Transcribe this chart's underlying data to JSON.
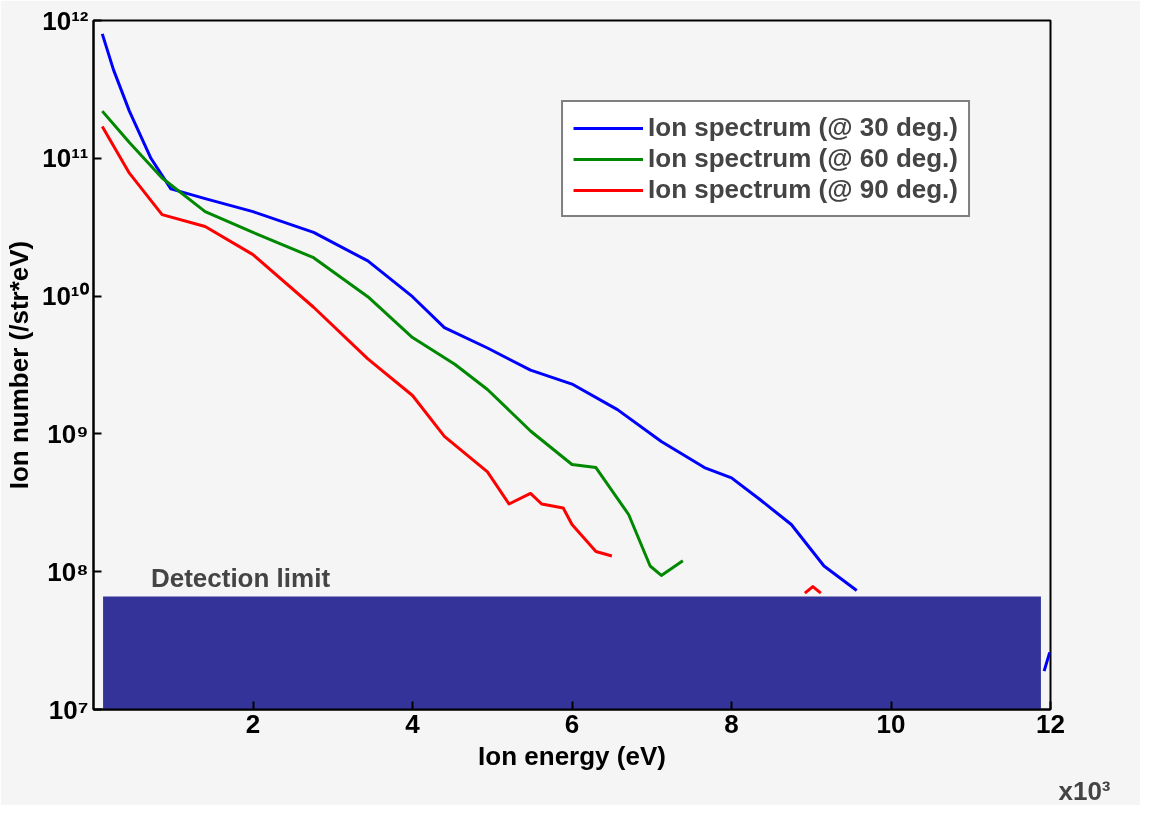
{
  "chart_data": {
    "type": "line",
    "xlabel": "Ion energy (eV)",
    "ylabel": "Ion number (/str*eV)",
    "log": "y",
    "xlim": [
      0,
      12
    ],
    "ylim": [
      10000000,
      1000000000000
    ],
    "xticks": [
      2,
      4,
      6,
      8,
      10,
      12
    ],
    "yticks": [
      {
        "value": 10000000,
        "label": "10⁷"
      },
      {
        "value": 100000000,
        "label": "10⁸"
      },
      {
        "value": 1000000000,
        "label": "10⁹"
      },
      {
        "value": 10000000000,
        "label": "10¹⁰"
      },
      {
        "value": 100000000000,
        "label": "10¹¹"
      },
      {
        "value": 1000000000000,
        "label": "10¹²"
      }
    ],
    "annotations": [
      "x10³"
    ],
    "grid": false,
    "legend": "top right",
    "line_style": "solid",
    "marker": "none",
    "series": [
      {
        "name": "Ion spectrum (@ 30 deg.)",
        "color": "#0000ff",
        "x": [
          0.11,
          0.25,
          0.45,
          0.72,
          0.97,
          1.4,
          2.0,
          2.76,
          3.44,
          4.0,
          4.4,
          4.94,
          5.48,
          6.0,
          6.57,
          7.12,
          7.66,
          8.0,
          8.34,
          8.75,
          9.16,
          9.57,
          9.84,
          11.92,
          11.99
        ],
        "values": [
          800000000000,
          440000000000,
          220000000000,
          100000000000,
          60000000000,
          51000000000,
          41000000000,
          29000000000,
          18000000000,
          9900000000,
          5900000000,
          4200000000,
          2900000000,
          2300000000,
          1500000000,
          880000000,
          570000000,
          480000000,
          340000000,
          220000000,
          110000000,
          73000000,
          null,
          19000000,
          26000000
        ]
      },
      {
        "name": "Ion spectrum (@ 60 deg.)",
        "color": "#008800",
        "x": [
          0.11,
          0.45,
          0.86,
          1.4,
          2.0,
          2.76,
          3.44,
          4.0,
          4.53,
          4.94,
          5.48,
          6.0,
          6.3,
          6.71,
          6.98,
          7.12,
          7.39
        ],
        "values": [
          220000000000,
          130000000000,
          72000000000,
          41000000000,
          29000000000,
          19000000000,
          9900000000,
          5000000000,
          3200000000,
          2100000000,
          1050000000,
          600000000,
          570000000,
          260000000,
          110000000,
          94000000,
          120000000
        ]
      },
      {
        "name": "Ion spectrum (@ 90 deg.)",
        "color": "#ff0000",
        "x": [
          0.11,
          0.45,
          0.86,
          1.4,
          2.0,
          2.76,
          3.44,
          4.0,
          4.4,
          4.94,
          5.21,
          5.48,
          5.62,
          5.89,
          6.0,
          6.3,
          6.5,
          6.57,
          8.92,
          9.02,
          9.12
        ],
        "values": [
          170000000000,
          78000000000,
          39000000000,
          32000000000,
          20000000000,
          8300000000,
          3500000000,
          1900000000,
          960000000,
          530000000,
          310000000,
          370000000,
          310000000,
          290000000,
          220000000,
          140000000,
          130000000,
          null,
          70000000,
          78000000,
          70000000
        ]
      }
    ],
    "bands": [
      {
        "axis": "y",
        "from": 10000000,
        "to": 66000000,
        "label": "Detection limit",
        "color": "#333399"
      }
    ]
  }
}
